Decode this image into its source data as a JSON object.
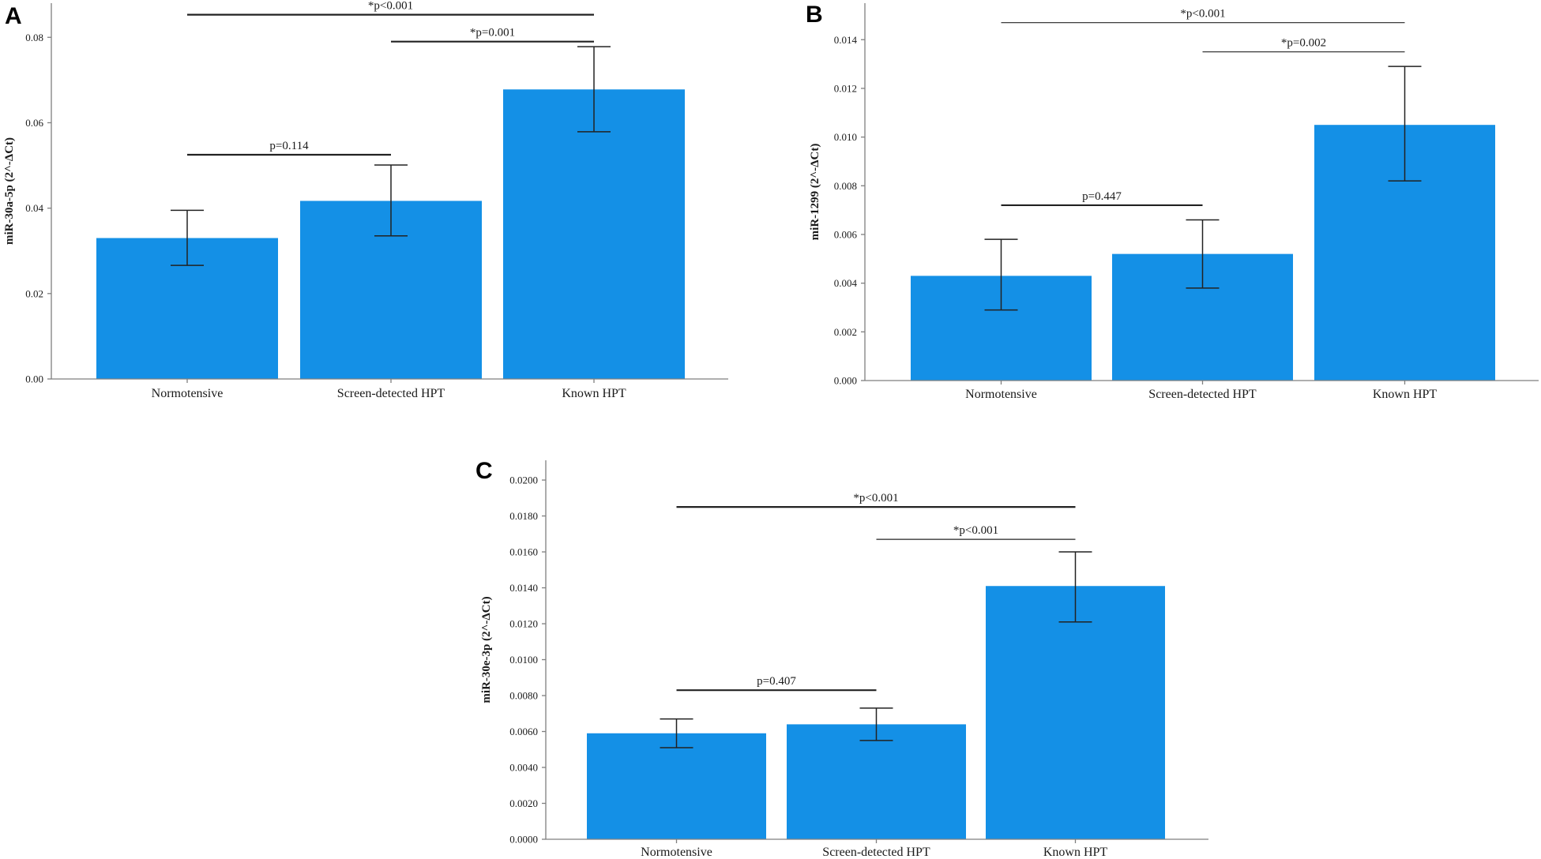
{
  "colors": {
    "bar": "#1490e6",
    "axis": "#7f7f7f",
    "text": "#1a1a1a"
  },
  "chart_data": [
    {
      "panel": "A",
      "type": "bar",
      "ylabel": "miR-30a-5p (2^-ΔCt)",
      "categories": [
        "Normotensive",
        "Screen-detected HPT",
        "Known HPT"
      ],
      "values": [
        0.033,
        0.0417,
        0.0678
      ],
      "error_low": [
        0.0266,
        0.0335,
        0.0579
      ],
      "error_high": [
        0.0395,
        0.0501,
        0.0778
      ],
      "ylim": [
        0,
        0.088
      ],
      "yticks": [
        0,
        0.02,
        0.04,
        0.06,
        0.08
      ],
      "ytick_labels": [
        "0.00",
        "0.02",
        "0.04",
        "0.06",
        "0.08"
      ],
      "annotations": [
        {
          "from": 0,
          "to": 2,
          "y": 0.0853,
          "label": "*p<0.001"
        },
        {
          "from": 1,
          "to": 2,
          "y": 0.079,
          "label": "*p=0.001"
        },
        {
          "from": 0,
          "to": 1,
          "y": 0.0525,
          "label": "p=0.114"
        }
      ]
    },
    {
      "panel": "B",
      "type": "bar",
      "ylabel": "miR-1299 (2^-ΔCt)",
      "categories": [
        "Normotensive",
        "Screen-detected HPT",
        "Known HPT"
      ],
      "values": [
        0.0043,
        0.0052,
        0.0105
      ],
      "error_low": [
        0.0029,
        0.0038,
        0.0082
      ],
      "error_high": [
        0.0058,
        0.0066,
        0.0129
      ],
      "ylim": [
        0,
        0.0155
      ],
      "yticks": [
        0,
        0.002,
        0.004,
        0.006,
        0.008,
        0.01,
        0.012,
        0.014
      ],
      "ytick_labels": [
        "0.000",
        "0.002",
        "0.004",
        "0.006",
        "0.008",
        "0.010",
        "0.012",
        "0.014"
      ],
      "annotations": [
        {
          "from": 0,
          "to": 2,
          "y": 0.0147,
          "label": "*p<0.001"
        },
        {
          "from": 1,
          "to": 2,
          "y": 0.0135,
          "label": "*p=0.002"
        },
        {
          "from": 0,
          "to": 1,
          "y": 0.0072,
          "label": "p=0.447"
        }
      ]
    },
    {
      "panel": "C",
      "type": "bar",
      "ylabel": "miR-30e-3p (2^-ΔCt)",
      "categories": [
        "Normotensive",
        "Screen-detected HPT",
        "Known HPT"
      ],
      "values": [
        0.0059,
        0.0064,
        0.0141
      ],
      "error_low": [
        0.0051,
        0.0055,
        0.0121
      ],
      "error_high": [
        0.0067,
        0.0073,
        0.016
      ],
      "ylim": [
        0,
        0.0211
      ],
      "yticks": [
        0,
        0.002,
        0.004,
        0.006,
        0.008,
        0.01,
        0.012,
        0.014,
        0.016,
        0.018,
        0.02
      ],
      "ytick_labels": [
        "0.0000",
        "0.0020",
        "0.0040",
        "0.0060",
        "0.0080",
        "0.0100",
        "0.0120",
        "0.0140",
        "0.0160",
        "0.0180",
        "0.0200"
      ],
      "annotations": [
        {
          "from": 0,
          "to": 2,
          "y": 0.0185,
          "label": "*p<0.001"
        },
        {
          "from": 1,
          "to": 2,
          "y": 0.0167,
          "label": "*p<0.001"
        },
        {
          "from": 0,
          "to": 1,
          "y": 0.0083,
          "label": "p=0.407"
        }
      ]
    }
  ]
}
